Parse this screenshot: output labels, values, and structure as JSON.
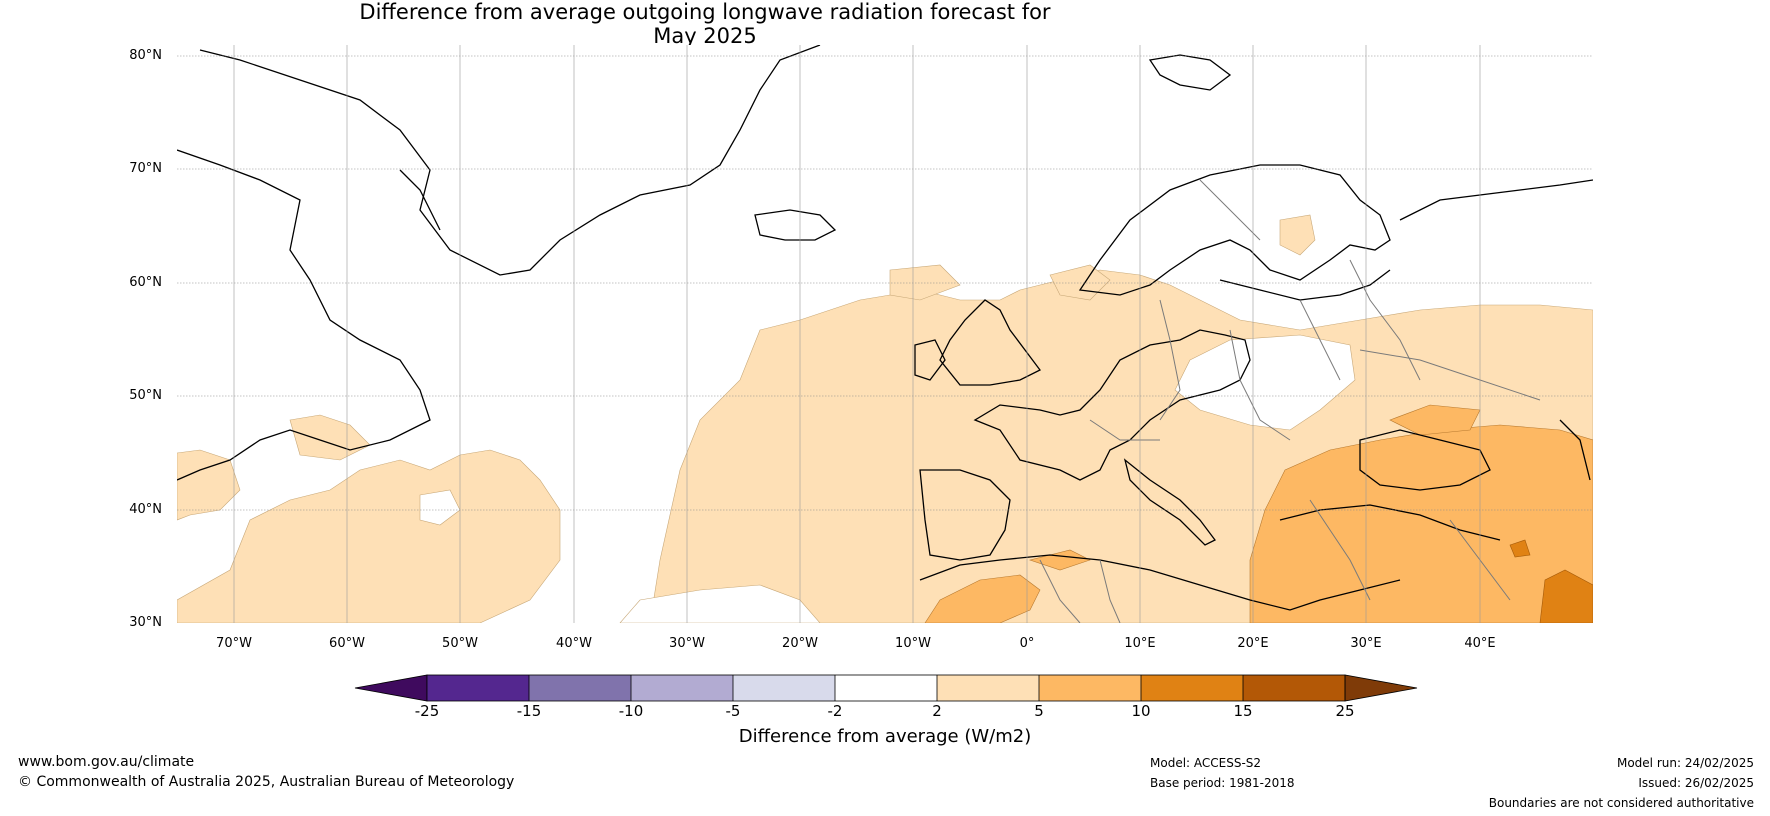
{
  "title": {
    "line1": "Difference from average outgoing longwave radiation forecast for",
    "line2": "May 2025"
  },
  "map": {
    "lat_labels": [
      "80°N",
      "70°N",
      "60°N",
      "50°N",
      "40°N",
      "30°N"
    ],
    "lon_labels": [
      "70°W",
      "60°W",
      "50°W",
      "40°W",
      "30°W",
      "20°W",
      "10°W",
      "0°",
      "10°E",
      "20°E",
      "30°E",
      "40°E"
    ],
    "lat_range": [
      30,
      81
    ],
    "lon_range": [
      -75,
      50
    ],
    "grid": true
  },
  "colorbar": {
    "ticks": [
      "-25",
      "-15",
      "-10",
      "-5",
      "-2",
      "2",
      "5",
      "10",
      "15",
      "25"
    ],
    "colors": [
      "#3f0a5e",
      "#54278f",
      "#8073ac",
      "#b2abd2",
      "#d8daeb",
      "#ffffff",
      "#fee0b6",
      "#fdb863",
      "#e08214",
      "#b35806",
      "#7f3b08"
    ],
    "title": "Difference from average (W/m2)"
  },
  "footer": {
    "url": "www.bom.gov.au/climate",
    "copyright": "© Commonwealth of Australia 2025, Australian Bureau of Meteorology",
    "model": "Model: ACCESS-S2",
    "base_period": "Base period: 1981-2018",
    "model_run": "Model run: 24/02/2025",
    "issued": "Issued: 26/02/2025",
    "disclaimer": "Boundaries are not considered authoritative"
  }
}
